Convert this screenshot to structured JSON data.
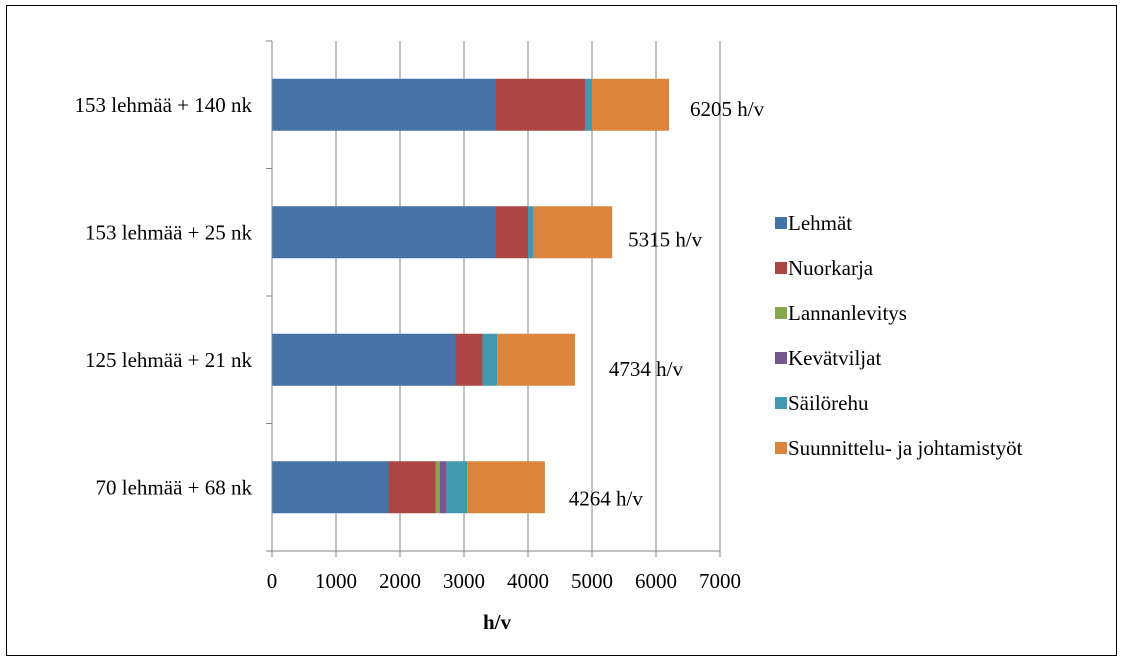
{
  "chart_data": {
    "type": "bar",
    "orientation": "horizontal",
    "stacked": true,
    "title": "",
    "xlabel": "h/v",
    "ylabel": "",
    "xlim": [
      0,
      7000
    ],
    "x_ticks": [
      "0",
      "1000",
      "2000",
      "3000",
      "4000",
      "5000",
      "6000",
      "7000"
    ],
    "grid": "vertical",
    "legend_position": "right",
    "categories": [
      "153 lehmää + 140 nk",
      "153 lehmää + 25 nk",
      "125 lehmää + 21 nk",
      "70 lehmää + 68 nk"
    ],
    "totals": [
      "6205 h/v",
      "5315 h/v",
      "4734 h/v",
      "4264 h/v"
    ],
    "series": [
      {
        "name": "Lehmät",
        "color": "#4572A7",
        "values": [
          3500,
          3500,
          2860,
          1820
        ]
      },
      {
        "name": "Nuorkarja",
        "color": "#AA4643",
        "values": [
          1390,
          500,
          430,
          740
        ]
      },
      {
        "name": "Lannanlevitys",
        "color": "#89A54E",
        "values": [
          0,
          0,
          0,
          60
        ]
      },
      {
        "name": "Kevätviljat",
        "color": "#71588F",
        "values": [
          0,
          0,
          0,
          110
        ]
      },
      {
        "name": "Säilörehu",
        "color": "#4198AF",
        "values": [
          110,
          90,
          230,
          320
        ]
      },
      {
        "name": "Suunnittelu- ja johtamistyöt",
        "color": "#DB843D",
        "values": [
          1205,
          1225,
          1214,
          1214
        ]
      }
    ]
  }
}
